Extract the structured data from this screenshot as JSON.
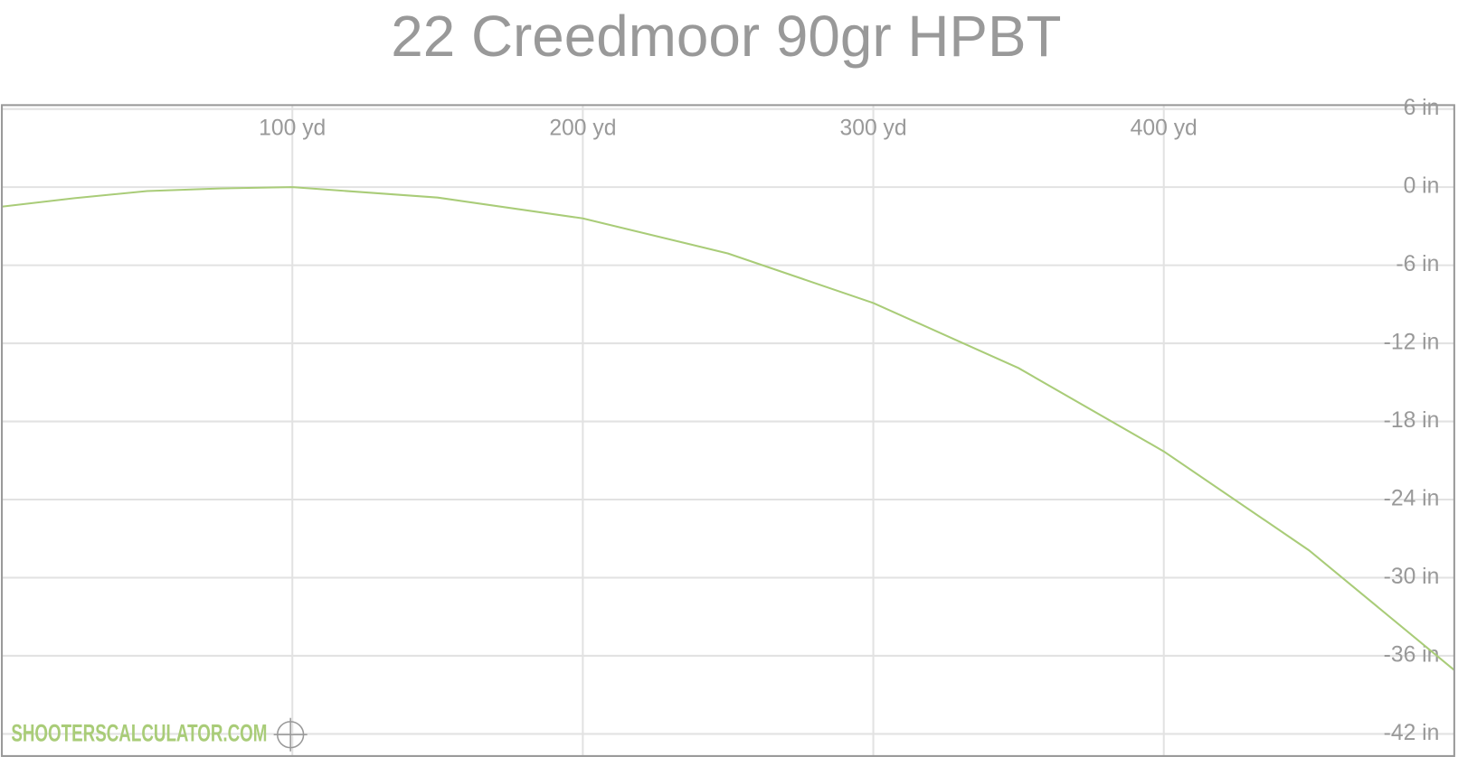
{
  "chart_data": {
    "type": "line",
    "title": "22 Creedmoor 90gr HPBT",
    "watermark": "SHOOTERSCALCULATOR.COM",
    "x": [
      0,
      25,
      50,
      75,
      100,
      150,
      200,
      250,
      300,
      350,
      400,
      450,
      500
    ],
    "series": [
      {
        "color": "#a9cc78",
        "values": [
          -1.5,
          -0.85,
          -0.3,
          -0.1,
          0,
          -0.8,
          -2.4,
          -5.1,
          -8.9,
          -13.9,
          -20.3,
          -27.9,
          -37.1
        ]
      }
    ],
    "xlim": [
      0,
      500
    ],
    "xticks": [
      {
        "value": 100,
        "label": "100 yd"
      },
      {
        "value": 200,
        "label": "200 yd"
      },
      {
        "value": 300,
        "label": "300 yd"
      },
      {
        "value": 400,
        "label": "400 yd"
      }
    ],
    "ylim": [
      -43.7,
      6.3
    ],
    "yticks": [
      {
        "value": 6,
        "label": "6 in"
      },
      {
        "value": 0,
        "label": "0 in"
      },
      {
        "value": -6,
        "label": "-6 in"
      },
      {
        "value": -12,
        "label": "-12 in"
      },
      {
        "value": -18,
        "label": "-18 in"
      },
      {
        "value": -24,
        "label": "-24 in"
      },
      {
        "value": -30,
        "label": "-30 in"
      },
      {
        "value": -36,
        "label": "-36 in"
      },
      {
        "value": -42,
        "label": "-42 in"
      }
    ],
    "grid": true
  }
}
